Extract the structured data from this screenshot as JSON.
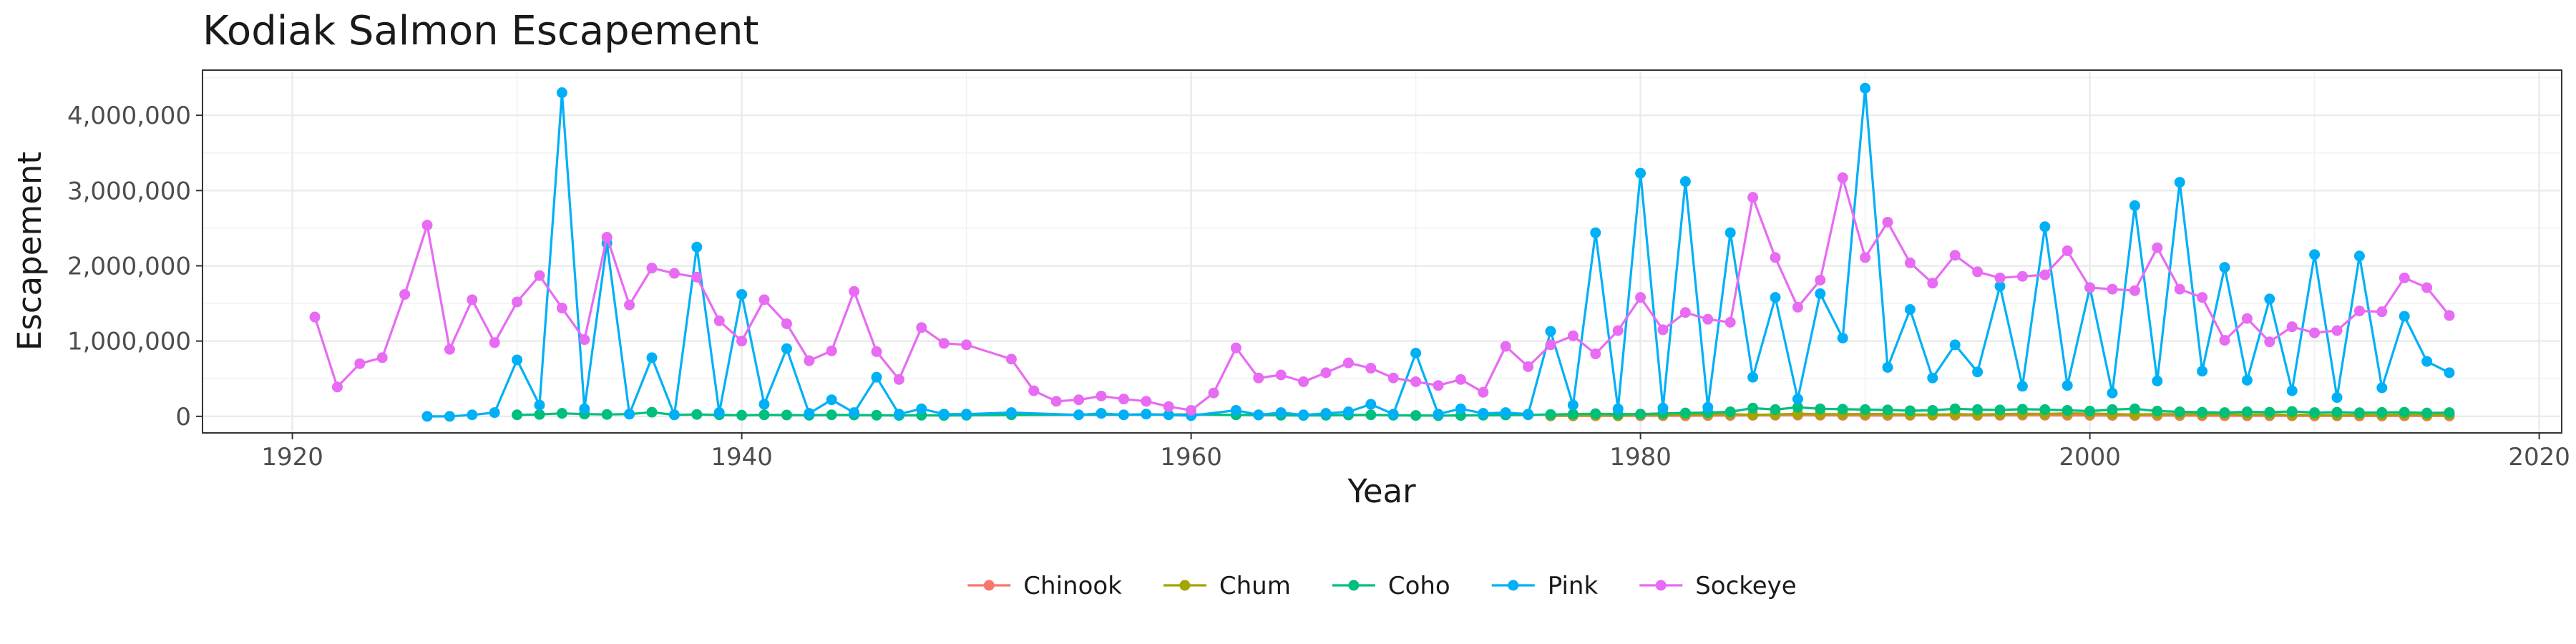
{
  "chart_data": {
    "type": "line",
    "title": "Kodiak Salmon Escapement",
    "xlabel": "Year",
    "ylabel": "Escapement",
    "xlim": [
      1916,
      2021
    ],
    "ylim": [
      -220000,
      4600000
    ],
    "x_ticks": [
      1920,
      1940,
      1960,
      1980,
      2000,
      2020
    ],
    "x_tick_labels": [
      "1920",
      "1940",
      "1960",
      "1980",
      "2000",
      "2020"
    ],
    "y_ticks": [
      0,
      1000000,
      2000000,
      3000000,
      4000000
    ],
    "y_tick_labels": [
      "0",
      "1,000,000",
      "2,000,000",
      "3,000,000",
      "4,000,000"
    ],
    "grid": true,
    "legend_position": "bottom",
    "series": [
      {
        "name": "Chinook",
        "color": "#F8766D",
        "x": [
          1976,
          1977,
          1978,
          1979,
          1980,
          1981,
          1982,
          1983,
          1984,
          1985,
          1986,
          1987,
          1988,
          1989,
          1990,
          1991,
          1992,
          1993,
          1994,
          1995,
          1996,
          1997,
          1998,
          1999,
          2000,
          2001,
          2002,
          2003,
          2004,
          2005,
          2006,
          2007,
          2008,
          2009,
          2010,
          2011,
          2012,
          2013,
          2014,
          2015,
          2016
        ],
        "y": [
          5000,
          6000,
          7000,
          6000,
          8000,
          9000,
          8000,
          10000,
          12000,
          14000,
          15000,
          16000,
          15000,
          14000,
          13000,
          12000,
          14000,
          15000,
          14000,
          13000,
          14000,
          16000,
          15000,
          14000,
          13000,
          12000,
          11000,
          10000,
          10000,
          9000,
          8000,
          8000,
          7000,
          7000,
          6000,
          6000,
          5000,
          5000,
          6000,
          5000,
          5000
        ]
      },
      {
        "name": "Chum",
        "color": "#A3A500",
        "x": [
          1976,
          1977,
          1978,
          1979,
          1980,
          1981,
          1982,
          1983,
          1984,
          1985,
          1986,
          1987,
          1988,
          1989,
          1990,
          1991,
          1992,
          1993,
          1994,
          1995,
          1996,
          1997,
          1998,
          1999,
          2000,
          2001,
          2002,
          2003,
          2004,
          2005,
          2006,
          2007,
          2008,
          2009,
          2010,
          2011,
          2012,
          2013,
          2014,
          2015,
          2016
        ],
        "y": [
          10000,
          12000,
          15000,
          10000,
          20000,
          18000,
          22000,
          25000,
          30000,
          20000,
          25000,
          35000,
          30000,
          28000,
          32000,
          30000,
          25000,
          22000,
          28000,
          25000,
          30000,
          35000,
          32000,
          40000,
          38000,
          30000,
          25000,
          28000,
          30000,
          25000,
          28000,
          22000,
          25000,
          20000,
          18000,
          15000,
          20000,
          18000,
          22000,
          15000,
          18000
        ]
      },
      {
        "name": "Coho",
        "color": "#00BF7D",
        "x": [
          1930,
          1931,
          1932,
          1933,
          1934,
          1935,
          1936,
          1937,
          1938,
          1939,
          1940,
          1941,
          1942,
          1943,
          1944,
          1945,
          1946,
          1947,
          1948,
          1949,
          1950,
          1952,
          1960,
          1962,
          1963,
          1964,
          1965,
          1966,
          1967,
          1968,
          1969,
          1970,
          1971,
          1972,
          1973,
          1974,
          1975,
          1976,
          1977,
          1978,
          1979,
          1980,
          1981,
          1982,
          1983,
          1984,
          1985,
          1986,
          1987,
          1988,
          1989,
          1990,
          1991,
          1992,
          1993,
          1994,
          1995,
          1996,
          1997,
          1998,
          1999,
          2000,
          2001,
          2002,
          2003,
          2004,
          2005,
          2006,
          2007,
          2008,
          2009,
          2010,
          2011,
          2012,
          2013,
          2014,
          2015,
          2016
        ],
        "y": [
          20000,
          25000,
          40000,
          30000,
          25000,
          30000,
          55000,
          20000,
          25000,
          20000,
          15000,
          20000,
          18000,
          15000,
          20000,
          18000,
          15000,
          12000,
          15000,
          12000,
          15000,
          20000,
          25000,
          20000,
          18000,
          15000,
          12000,
          15000,
          18000,
          20000,
          15000,
          12000,
          10000,
          12000,
          15000,
          18000,
          20000,
          25000,
          30000,
          35000,
          28000,
          30000,
          40000,
          45000,
          50000,
          60000,
          110000,
          90000,
          120000,
          100000,
          95000,
          90000,
          85000,
          75000,
          80000,
          100000,
          90000,
          85000,
          95000,
          90000,
          80000,
          70000,
          90000,
          100000,
          70000,
          60000,
          55000,
          50000,
          60000,
          55000,
          65000,
          50000,
          55000,
          48000,
          52000,
          55000,
          45000,
          50000
        ]
      },
      {
        "name": "Pink",
        "color": "#00B0F6",
        "x": [
          1926,
          1927,
          1928,
          1929,
          1930,
          1931,
          1932,
          1933,
          1934,
          1935,
          1936,
          1937,
          1938,
          1939,
          1940,
          1941,
          1942,
          1943,
          1944,
          1945,
          1946,
          1947,
          1948,
          1949,
          1950,
          1952,
          1955,
          1956,
          1957,
          1958,
          1959,
          1960,
          1962,
          1963,
          1964,
          1965,
          1966,
          1967,
          1968,
          1969,
          1970,
          1971,
          1972,
          1973,
          1974,
          1975,
          1976,
          1977,
          1978,
          1979,
          1980,
          1981,
          1982,
          1983,
          1984,
          1985,
          1986,
          1987,
          1988,
          1989,
          1990,
          1991,
          1992,
          1993,
          1994,
          1995,
          1996,
          1997,
          1998,
          1999,
          2000,
          2001,
          2002,
          2003,
          2004,
          2005,
          2006,
          2007,
          2008,
          2009,
          2010,
          2011,
          2012,
          2013,
          2014,
          2015,
          2016
        ],
        "y": [
          0,
          0,
          20000,
          50000,
          750000,
          150000,
          4300000,
          100000,
          2300000,
          30000,
          780000,
          20000,
          2250000,
          50000,
          1620000,
          160000,
          900000,
          40000,
          220000,
          50000,
          520000,
          30000,
          100000,
          30000,
          30000,
          50000,
          20000,
          40000,
          20000,
          30000,
          20000,
          10000,
          80000,
          20000,
          50000,
          20000,
          40000,
          60000,
          160000,
          30000,
          840000,
          30000,
          100000,
          40000,
          50000,
          30000,
          1130000,
          150000,
          2440000,
          100000,
          3230000,
          110000,
          3120000,
          120000,
          2440000,
          520000,
          1580000,
          230000,
          1630000,
          1040000,
          4360000,
          650000,
          1420000,
          510000,
          950000,
          590000,
          1730000,
          400000,
          2520000,
          410000,
          1710000,
          310000,
          2800000,
          470000,
          3110000,
          600000,
          1980000,
          480000,
          1560000,
          340000,
          2150000,
          250000,
          2130000,
          380000,
          1330000,
          730000,
          580000
        ]
      },
      {
        "name": "Sockeye",
        "color": "#E76BF3",
        "x": [
          1921,
          1922,
          1923,
          1924,
          1925,
          1926,
          1927,
          1928,
          1929,
          1930,
          1931,
          1932,
          1933,
          1934,
          1935,
          1936,
          1937,
          1938,
          1939,
          1940,
          1941,
          1942,
          1943,
          1944,
          1945,
          1946,
          1947,
          1948,
          1949,
          1950,
          1952,
          1953,
          1954,
          1955,
          1956,
          1957,
          1958,
          1959,
          1960,
          1961,
          1962,
          1963,
          1964,
          1965,
          1966,
          1967,
          1968,
          1969,
          1970,
          1971,
          1972,
          1973,
          1974,
          1975,
          1976,
          1977,
          1978,
          1979,
          1980,
          1981,
          1982,
          1983,
          1984,
          1985,
          1986,
          1987,
          1988,
          1989,
          1990,
          1991,
          1992,
          1993,
          1994,
          1995,
          1996,
          1997,
          1998,
          1999,
          2000,
          2001,
          2002,
          2003,
          2004,
          2005,
          2006,
          2007,
          2008,
          2009,
          2010,
          2011,
          2012,
          2013,
          2014,
          2015,
          2016
        ],
        "y": [
          1320000,
          390000,
          700000,
          780000,
          1620000,
          2540000,
          890000,
          1550000,
          980000,
          1520000,
          1870000,
          1440000,
          1020000,
          2380000,
          1480000,
          1970000,
          1900000,
          1850000,
          1270000,
          1000000,
          1550000,
          1230000,
          740000,
          870000,
          1660000,
          860000,
          490000,
          1180000,
          970000,
          950000,
          760000,
          340000,
          200000,
          220000,
          270000,
          230000,
          200000,
          130000,
          80000,
          310000,
          910000,
          510000,
          550000,
          460000,
          580000,
          710000,
          640000,
          510000,
          460000,
          410000,
          490000,
          320000,
          930000,
          660000,
          950000,
          1070000,
          830000,
          1140000,
          1580000,
          1150000,
          1380000,
          1290000,
          1250000,
          2910000,
          2110000,
          1450000,
          1810000,
          3170000,
          2110000,
          2580000,
          2040000,
          1770000,
          2140000,
          1920000,
          1840000,
          1860000,
          1880000,
          2200000,
          1710000,
          1690000,
          1670000,
          2240000,
          1690000,
          1580000,
          1010000,
          1300000,
          990000,
          1190000,
          1110000,
          1140000,
          1400000,
          1390000,
          1840000,
          1710000,
          1340000
        ]
      }
    ]
  }
}
